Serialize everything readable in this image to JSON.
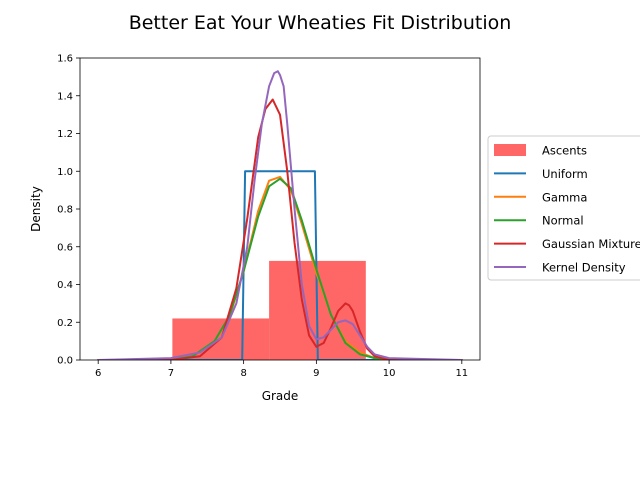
{
  "chart_data": {
    "type": "histogram-with-density-fits",
    "title": "Better Eat Your Wheaties Fit Distribution",
    "xlabel": "Grade",
    "ylabel": "Density",
    "xlim": [
      5.75,
      11.25
    ],
    "ylim": [
      0,
      1.6
    ],
    "xticks": [
      6,
      7,
      8,
      9,
      10,
      11
    ],
    "yticks": [
      0.0,
      0.2,
      0.4,
      0.6,
      0.8,
      1.0,
      1.2,
      1.4,
      1.6
    ],
    "xtick_labels": [
      "6",
      "7",
      "8",
      "9",
      "10",
      "11"
    ],
    "ytick_labels": [
      "0.0",
      "0.2",
      "0.4",
      "0.6",
      "0.8",
      "1.0",
      "1.2",
      "1.4",
      "1.6"
    ],
    "grid": false,
    "legend_position": "outside right, center",
    "histogram": {
      "name": "Ascents",
      "color": "#ff6666",
      "bins": [
        {
          "x0": 7.02,
          "x1": 8.35,
          "density": 0.22
        },
        {
          "x0": 8.35,
          "x1": 9.68,
          "density": 0.525
        }
      ]
    },
    "series": [
      {
        "name": "Uniform",
        "color": "#1f77b4",
        "x": [
          6.0,
          7.98,
          8.02,
          8.98,
          9.02,
          11.0
        ],
        "y": [
          0.0,
          0.0,
          1.0,
          1.0,
          0.0,
          0.0
        ]
      },
      {
        "name": "Gamma",
        "color": "#ff7f0e",
        "x": [
          6.0,
          7.0,
          7.3,
          7.6,
          7.8,
          8.0,
          8.2,
          8.35,
          8.5,
          8.65,
          8.8,
          9.0,
          9.2,
          9.4,
          9.6,
          9.8,
          10.0,
          10.5,
          11.0
        ],
        "y": [
          0.0,
          0.0,
          0.02,
          0.1,
          0.22,
          0.47,
          0.79,
          0.95,
          0.97,
          0.9,
          0.72,
          0.46,
          0.24,
          0.1,
          0.04,
          0.01,
          0.0,
          0.0,
          0.0
        ]
      },
      {
        "name": "Normal",
        "color": "#2ca02c",
        "x": [
          6.0,
          7.0,
          7.3,
          7.6,
          7.8,
          8.0,
          8.2,
          8.35,
          8.5,
          8.65,
          8.8,
          9.0,
          9.2,
          9.4,
          9.6,
          9.8,
          10.0,
          10.5,
          11.0
        ],
        "y": [
          0.0,
          0.0,
          0.02,
          0.1,
          0.23,
          0.47,
          0.76,
          0.92,
          0.96,
          0.91,
          0.74,
          0.48,
          0.24,
          0.09,
          0.03,
          0.01,
          0.0,
          0.0,
          0.0
        ]
      },
      {
        "name": "Gaussian Mixture",
        "color": "#d62728",
        "x": [
          6.0,
          7.0,
          7.4,
          7.7,
          7.9,
          8.05,
          8.2,
          8.3,
          8.4,
          8.5,
          8.6,
          8.7,
          8.8,
          8.9,
          9.0,
          9.1,
          9.2,
          9.3,
          9.4,
          9.45,
          9.5,
          9.6,
          9.7,
          9.8,
          10.0,
          11.0
        ],
        "y": [
          0.0,
          0.0,
          0.02,
          0.12,
          0.38,
          0.75,
          1.18,
          1.33,
          1.38,
          1.3,
          1.0,
          0.62,
          0.32,
          0.13,
          0.07,
          0.09,
          0.17,
          0.26,
          0.3,
          0.29,
          0.26,
          0.15,
          0.06,
          0.02,
          0.0,
          0.0
        ]
      },
      {
        "name": "Kernel Density",
        "color": "#9467bd",
        "x": [
          6.0,
          7.0,
          7.4,
          7.7,
          7.9,
          8.05,
          8.15,
          8.25,
          8.35,
          8.42,
          8.47,
          8.5,
          8.55,
          8.6,
          8.7,
          8.8,
          8.9,
          9.0,
          9.1,
          9.2,
          9.3,
          9.4,
          9.5,
          9.6,
          9.7,
          9.8,
          10.0,
          11.0
        ],
        "y": [
          0.0,
          0.01,
          0.04,
          0.12,
          0.3,
          0.6,
          0.95,
          1.25,
          1.45,
          1.52,
          1.53,
          1.51,
          1.45,
          1.25,
          0.8,
          0.4,
          0.18,
          0.11,
          0.12,
          0.16,
          0.2,
          0.21,
          0.19,
          0.13,
          0.07,
          0.03,
          0.01,
          0.0
        ]
      }
    ],
    "legend": {
      "entries": [
        {
          "label": "Ascents",
          "kind": "patch",
          "color": "#ff6666"
        },
        {
          "label": "Uniform",
          "kind": "line",
          "color": "#1f77b4"
        },
        {
          "label": "Gamma",
          "kind": "line",
          "color": "#ff7f0e"
        },
        {
          "label": "Normal",
          "kind": "line",
          "color": "#2ca02c"
        },
        {
          "label": "Gaussian Mixture",
          "kind": "line",
          "color": "#d62728"
        },
        {
          "label": "Kernel Density",
          "kind": "line",
          "color": "#9467bd"
        }
      ]
    }
  }
}
